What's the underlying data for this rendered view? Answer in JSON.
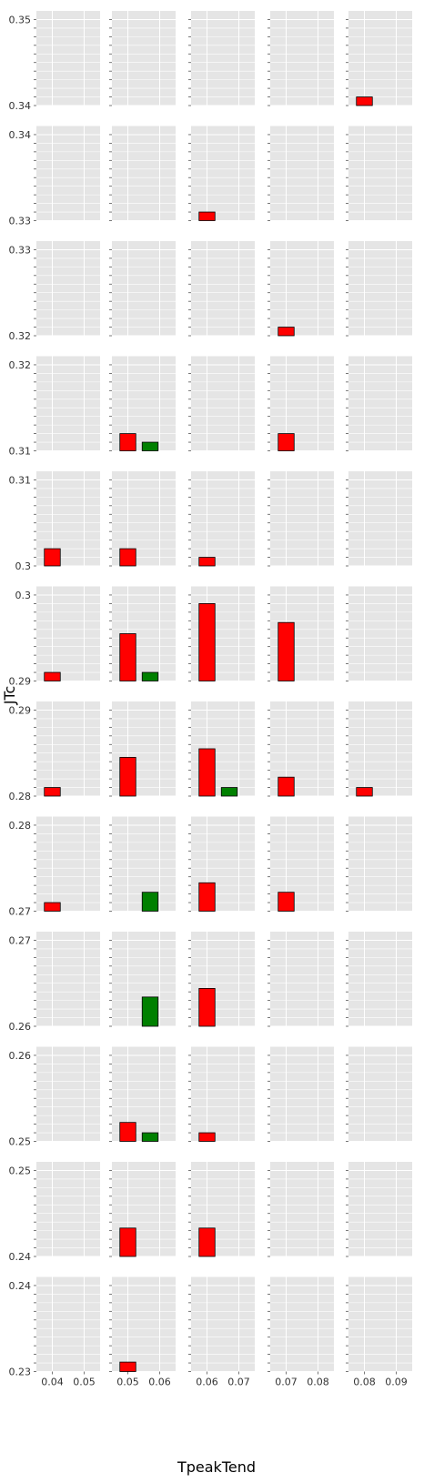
{
  "chart_data": {
    "type": "bar",
    "layout": "faceted grid (12 rows x 5 columns)",
    "xlabel": "TpeakTend",
    "ylabel": "JTc",
    "panel_background": "#e5e5e5",
    "grid": true,
    "colors": {
      "red": "#ff0000",
      "green": "#008000"
    },
    "column_x_ranges": [
      {
        "xlim": [
          0.035,
          0.055
        ],
        "xticks": [
          "0.04",
          "0.05"
        ],
        "xtick_values": [
          0.04,
          0.05
        ]
      },
      {
        "xlim": [
          0.045,
          0.065
        ],
        "xticks": [
          "0.05",
          "0.06"
        ],
        "xtick_values": [
          0.05,
          0.06
        ]
      },
      {
        "xlim": [
          0.055,
          0.075
        ],
        "xticks": [
          "0.06",
          "0.07"
        ],
        "xtick_values": [
          0.06,
          0.07
        ]
      },
      {
        "xlim": [
          0.065,
          0.085
        ],
        "xticks": [
          "0.07",
          "0.08"
        ],
        "xtick_values": [
          0.07,
          0.08
        ]
      },
      {
        "xlim": [
          0.075,
          0.095
        ],
        "xticks": [
          "0.08",
          "0.09"
        ],
        "xtick_values": [
          0.08,
          0.09
        ]
      }
    ],
    "rows": [
      {
        "ylim": [
          0.34,
          0.351
        ],
        "ytick_top": "0.35",
        "ytick_bottom": "0.34"
      },
      {
        "ylim": [
          0.33,
          0.341
        ],
        "ytick_top": "0.34",
        "ytick_bottom": "0.33"
      },
      {
        "ylim": [
          0.32,
          0.331
        ],
        "ytick_top": "0.33",
        "ytick_bottom": "0.32"
      },
      {
        "ylim": [
          0.31,
          0.321
        ],
        "ytick_top": "0.32",
        "ytick_bottom": "0.31"
      },
      {
        "ylim": [
          0.3,
          0.311
        ],
        "ytick_top": "0.31",
        "ytick_bottom": "0.3"
      },
      {
        "ylim": [
          0.29,
          0.301
        ],
        "ytick_top": "0.3",
        "ytick_bottom": "0.29"
      },
      {
        "ylim": [
          0.28,
          0.291
        ],
        "ytick_top": "0.29",
        "ytick_bottom": "0.28"
      },
      {
        "ylim": [
          0.27,
          0.281
        ],
        "ytick_top": "0.28",
        "ytick_bottom": "0.27"
      },
      {
        "ylim": [
          0.26,
          0.271
        ],
        "ytick_top": "0.27",
        "ytick_bottom": "0.26"
      },
      {
        "ylim": [
          0.25,
          0.261
        ],
        "ytick_top": "0.26",
        "ytick_bottom": "0.25"
      },
      {
        "ylim": [
          0.24,
          0.251
        ],
        "ytick_top": "0.25",
        "ytick_bottom": "0.24"
      },
      {
        "ylim": [
          0.23,
          0.241
        ],
        "ytick_top": "0.24",
        "ytick_bottom": "0.23"
      }
    ],
    "bars": [
      {
        "row": 0,
        "col": 4,
        "x0": 0.0775,
        "x1": 0.0825,
        "top": 0.341,
        "color": "red"
      },
      {
        "row": 1,
        "col": 2,
        "x0": 0.0575,
        "x1": 0.0625,
        "top": 0.331,
        "color": "red"
      },
      {
        "row": 2,
        "col": 3,
        "x0": 0.0675,
        "x1": 0.0725,
        "top": 0.321,
        "color": "red"
      },
      {
        "row": 3,
        "col": 1,
        "x0": 0.0475,
        "x1": 0.0525,
        "top": 0.312,
        "color": "red"
      },
      {
        "row": 3,
        "col": 1,
        "x0": 0.0545,
        "x1": 0.0595,
        "top": 0.311,
        "color": "green"
      },
      {
        "row": 3,
        "col": 3,
        "x0": 0.0675,
        "x1": 0.0725,
        "top": 0.312,
        "color": "red"
      },
      {
        "row": 4,
        "col": 0,
        "x0": 0.0375,
        "x1": 0.0425,
        "top": 0.302,
        "color": "red"
      },
      {
        "row": 4,
        "col": 1,
        "x0": 0.0475,
        "x1": 0.0525,
        "top": 0.302,
        "color": "red"
      },
      {
        "row": 4,
        "col": 2,
        "x0": 0.0575,
        "x1": 0.0625,
        "top": 0.301,
        "color": "red"
      },
      {
        "row": 5,
        "col": 0,
        "x0": 0.0375,
        "x1": 0.0425,
        "top": 0.291,
        "color": "red"
      },
      {
        "row": 5,
        "col": 1,
        "x0": 0.0475,
        "x1": 0.0525,
        "top": 0.2955,
        "color": "red"
      },
      {
        "row": 5,
        "col": 1,
        "x0": 0.0545,
        "x1": 0.0595,
        "top": 0.291,
        "color": "green"
      },
      {
        "row": 5,
        "col": 2,
        "x0": 0.0575,
        "x1": 0.0625,
        "top": 0.299,
        "color": "red"
      },
      {
        "row": 5,
        "col": 3,
        "x0": 0.0675,
        "x1": 0.0725,
        "top": 0.2968,
        "color": "red"
      },
      {
        "row": 6,
        "col": 0,
        "x0": 0.0375,
        "x1": 0.0425,
        "top": 0.281,
        "color": "red"
      },
      {
        "row": 6,
        "col": 1,
        "x0": 0.0475,
        "x1": 0.0525,
        "top": 0.2845,
        "color": "red"
      },
      {
        "row": 6,
        "col": 2,
        "x0": 0.0575,
        "x1": 0.0625,
        "top": 0.2855,
        "color": "red"
      },
      {
        "row": 6,
        "col": 2,
        "x0": 0.0645,
        "x1": 0.0695,
        "top": 0.281,
        "color": "green"
      },
      {
        "row": 6,
        "col": 3,
        "x0": 0.0675,
        "x1": 0.0725,
        "top": 0.2822,
        "color": "red"
      },
      {
        "row": 6,
        "col": 4,
        "x0": 0.0775,
        "x1": 0.0825,
        "top": 0.281,
        "color": "red"
      },
      {
        "row": 7,
        "col": 0,
        "x0": 0.0375,
        "x1": 0.0425,
        "top": 0.271,
        "color": "red"
      },
      {
        "row": 7,
        "col": 1,
        "x0": 0.0545,
        "x1": 0.0595,
        "top": 0.2722,
        "color": "green"
      },
      {
        "row": 7,
        "col": 2,
        "x0": 0.0575,
        "x1": 0.0625,
        "top": 0.2733,
        "color": "red"
      },
      {
        "row": 7,
        "col": 3,
        "x0": 0.0675,
        "x1": 0.0725,
        "top": 0.2722,
        "color": "red"
      },
      {
        "row": 8,
        "col": 1,
        "x0": 0.0545,
        "x1": 0.0595,
        "top": 0.2634,
        "color": "green"
      },
      {
        "row": 8,
        "col": 2,
        "x0": 0.0575,
        "x1": 0.0625,
        "top": 0.2644,
        "color": "red"
      },
      {
        "row": 9,
        "col": 1,
        "x0": 0.0475,
        "x1": 0.0525,
        "top": 0.2522,
        "color": "red"
      },
      {
        "row": 9,
        "col": 1,
        "x0": 0.0545,
        "x1": 0.0595,
        "top": 0.251,
        "color": "green"
      },
      {
        "row": 9,
        "col": 2,
        "x0": 0.0575,
        "x1": 0.0625,
        "top": 0.251,
        "color": "red"
      },
      {
        "row": 10,
        "col": 1,
        "x0": 0.0475,
        "x1": 0.0525,
        "top": 0.2433,
        "color": "red"
      },
      {
        "row": 10,
        "col": 2,
        "x0": 0.0575,
        "x1": 0.0625,
        "top": 0.2433,
        "color": "red"
      },
      {
        "row": 11,
        "col": 1,
        "x0": 0.0475,
        "x1": 0.0525,
        "top": 0.2311,
        "color": "red"
      }
    ]
  }
}
